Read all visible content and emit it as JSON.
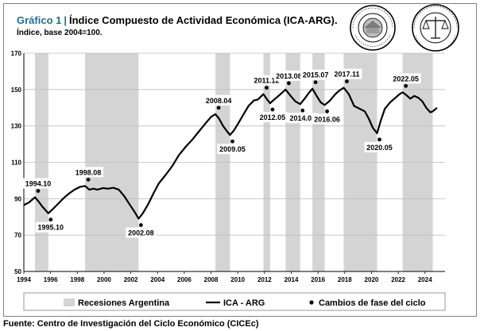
{
  "header": {
    "title_number": "Gráfico 1",
    "title_sep": "|",
    "title_text": "Índice Compuesto de Actividad Económica (ICA-ARG).",
    "subtitle": "Índice, base 2004=100."
  },
  "seals": {
    "left_text": "BOLSA DE COMERCIO DE SANTA FE",
    "right_text": "BOLSA DE COMERCIO DE ROSARIO"
  },
  "source": "Fuente: Centro de Investigación del Ciclo Económico (CICEc)",
  "colors": {
    "recession": "#d4d4d4",
    "line": "#000000",
    "title_accent": "#1f6f8f"
  },
  "chart_data": {
    "type": "line",
    "xlim": [
      1994,
      2025.5
    ],
    "ylim": [
      50,
      170
    ],
    "yticks": [
      50,
      70,
      90,
      110,
      130,
      150,
      170
    ],
    "xticks": [
      1994,
      1996,
      1998,
      2000,
      2002,
      2004,
      2006,
      2008,
      2010,
      2012,
      2014,
      2016,
      2018,
      2020,
      2022,
      2024
    ],
    "grid": true,
    "legend": {
      "placement": "bottom",
      "entries": [
        {
          "key": "recession",
          "label": "Recesiones Argentina"
        },
        {
          "key": "line",
          "label": "ICA - ARG"
        },
        {
          "key": "points",
          "label": "Cambios de fase del ciclo"
        }
      ]
    },
    "recessions": [
      [
        1994.83,
        1995.83
      ],
      [
        1998.58,
        2002.58
      ],
      [
        2008.33,
        2009.42
      ],
      [
        2011.92,
        2012.42
      ],
      [
        2013.58,
        2014.67
      ],
      [
        2015.58,
        2016.5
      ],
      [
        2017.92,
        2020.42
      ],
      [
        2022.33,
        2024.58
      ]
    ],
    "series": [
      {
        "key": "ica",
        "points": [
          [
            1994.0,
            86.5
          ],
          [
            1994.4,
            88.0
          ],
          [
            1994.83,
            90.8
          ],
          [
            1995.1,
            88.5
          ],
          [
            1995.4,
            85.5
          ],
          [
            1995.83,
            82.0
          ],
          [
            1996.2,
            84.5
          ],
          [
            1996.6,
            87.5
          ],
          [
            1997.0,
            90.5
          ],
          [
            1997.4,
            93.0
          ],
          [
            1997.8,
            95.0
          ],
          [
            1998.2,
            96.5
          ],
          [
            1998.58,
            97.0
          ],
          [
            1998.9,
            95.0
          ],
          [
            1999.2,
            95.5
          ],
          [
            1999.5,
            95.0
          ],
          [
            1999.9,
            95.8
          ],
          [
            2000.3,
            95.5
          ],
          [
            2000.7,
            96.0
          ],
          [
            2001.1,
            95.0
          ],
          [
            2001.5,
            91.5
          ],
          [
            2001.9,
            87.0
          ],
          [
            2002.3,
            82.5
          ],
          [
            2002.58,
            79.0
          ],
          [
            2002.9,
            82.0
          ],
          [
            2003.3,
            87.0
          ],
          [
            2003.7,
            93.0
          ],
          [
            2004.1,
            98.5
          ],
          [
            2004.6,
            103.0
          ],
          [
            2005.1,
            108.0
          ],
          [
            2005.6,
            114.0
          ],
          [
            2006.1,
            118.5
          ],
          [
            2006.6,
            122.5
          ],
          [
            2007.1,
            127.0
          ],
          [
            2007.6,
            131.5
          ],
          [
            2008.0,
            135.0
          ],
          [
            2008.33,
            136.5
          ],
          [
            2008.6,
            134.0
          ],
          [
            2008.9,
            130.0
          ],
          [
            2009.2,
            127.0
          ],
          [
            2009.42,
            125.0
          ],
          [
            2009.7,
            127.5
          ],
          [
            2010.0,
            131.0
          ],
          [
            2010.4,
            136.0
          ],
          [
            2010.8,
            141.0
          ],
          [
            2011.2,
            144.0
          ],
          [
            2011.5,
            144.5
          ],
          [
            2011.92,
            147.5
          ],
          [
            2012.2,
            144.5
          ],
          [
            2012.42,
            142.5
          ],
          [
            2012.8,
            145.0
          ],
          [
            2013.2,
            147.5
          ],
          [
            2013.58,
            150.0
          ],
          [
            2013.9,
            147.0
          ],
          [
            2014.3,
            143.5
          ],
          [
            2014.67,
            142.0
          ],
          [
            2015.0,
            145.0
          ],
          [
            2015.3,
            148.0
          ],
          [
            2015.58,
            150.5
          ],
          [
            2015.9,
            146.5
          ],
          [
            2016.2,
            143.0
          ],
          [
            2016.5,
            141.5
          ],
          [
            2016.9,
            144.0
          ],
          [
            2017.3,
            147.5
          ],
          [
            2017.6,
            149.5
          ],
          [
            2017.92,
            151.0
          ],
          [
            2018.3,
            147.5
          ],
          [
            2018.7,
            141.0
          ],
          [
            2019.1,
            139.5
          ],
          [
            2019.5,
            138.0
          ],
          [
            2019.8,
            134.0
          ],
          [
            2020.1,
            129.0
          ],
          [
            2020.42,
            126.0
          ],
          [
            2020.7,
            133.0
          ],
          [
            2021.0,
            139.5
          ],
          [
            2021.4,
            143.0
          ],
          [
            2021.8,
            145.5
          ],
          [
            2022.1,
            147.5
          ],
          [
            2022.33,
            148.5
          ],
          [
            2022.6,
            147.0
          ],
          [
            2022.9,
            145.0
          ],
          [
            2023.2,
            146.5
          ],
          [
            2023.5,
            145.5
          ],
          [
            2023.8,
            143.5
          ],
          [
            2024.1,
            140.0
          ],
          [
            2024.4,
            137.5
          ],
          [
            2024.58,
            138.0
          ],
          [
            2024.9,
            140.0
          ]
        ]
      }
    ],
    "phase_points": [
      {
        "x": 1994.83,
        "y": 90.8,
        "label": "1994.10",
        "pos": "above"
      },
      {
        "x": 1995.83,
        "y": 82.0,
        "label": "1995.10",
        "pos": "below"
      },
      {
        "x": 1998.58,
        "y": 97.0,
        "label": "1998.08",
        "pos": "above"
      },
      {
        "x": 2002.58,
        "y": 79.0,
        "label": "2002.08",
        "pos": "below"
      },
      {
        "x": 2008.33,
        "y": 136.5,
        "label": "2008.04",
        "pos": "above"
      },
      {
        "x": 2009.42,
        "y": 125.0,
        "label": "2009.05",
        "pos": "below"
      },
      {
        "x": 2011.92,
        "y": 147.5,
        "label": "2011.12",
        "pos": "above"
      },
      {
        "x": 2012.42,
        "y": 142.5,
        "label": "2012.05",
        "pos": "below"
      },
      {
        "x": 2013.58,
        "y": 150.0,
        "label": "2013.08",
        "pos": "above"
      },
      {
        "x": 2014.67,
        "y": 142.0,
        "label": "2014.08",
        "pos": "below"
      },
      {
        "x": 2015.58,
        "y": 150.5,
        "label": "2015.07",
        "pos": "above"
      },
      {
        "x": 2016.5,
        "y": 141.5,
        "label": "2016.06",
        "pos": "below"
      },
      {
        "x": 2017.92,
        "y": 151.0,
        "label": "2017.11",
        "pos": "above"
      },
      {
        "x": 2020.42,
        "y": 126.0,
        "label": "2020.05",
        "pos": "below"
      },
      {
        "x": 2022.33,
        "y": 148.5,
        "label": "2022.05",
        "pos": "above"
      }
    ]
  }
}
